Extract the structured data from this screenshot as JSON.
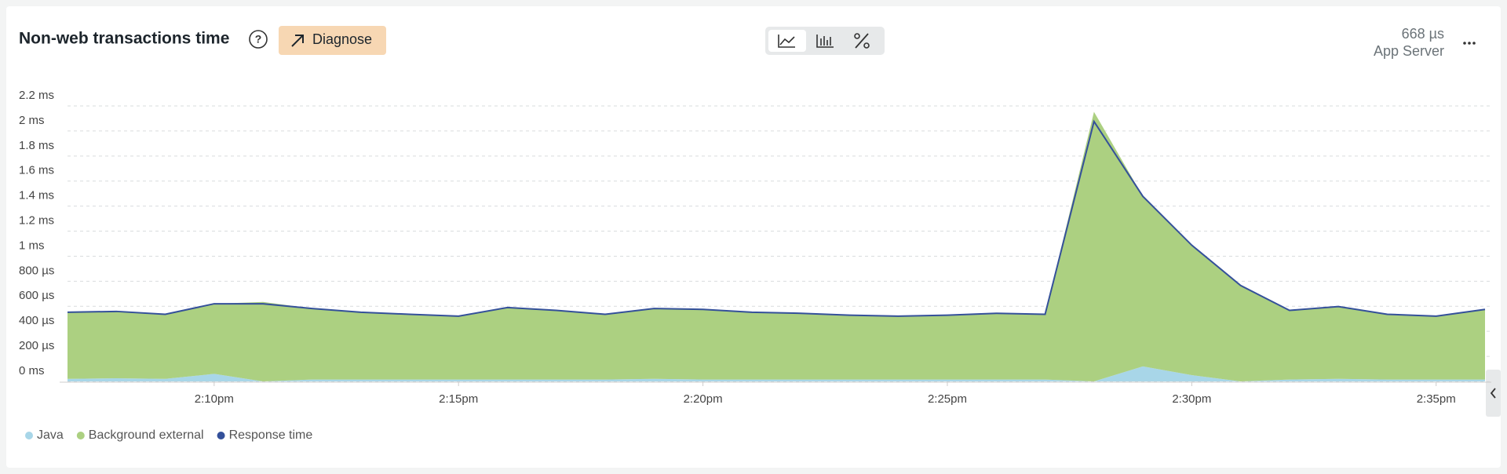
{
  "header": {
    "button": "Diagnose",
    "summary_value": "668 µs",
    "summary_label": "App Server"
  },
  "chart_data": {
    "type": "area",
    "title": "Non-web transactions time",
    "x": [
      7,
      8,
      9,
      10,
      11,
      12,
      13,
      14,
      15,
      16,
      17,
      18,
      19,
      20,
      21,
      22,
      23,
      24,
      25,
      26,
      27,
      28,
      29,
      30,
      31,
      32,
      33,
      34,
      35,
      36
    ],
    "xlim": [
      7,
      36
    ],
    "xticks": [
      {
        "value": 10,
        "label": "2:10pm"
      },
      {
        "value": 15,
        "label": "2:15pm"
      },
      {
        "value": 20,
        "label": "2:20pm"
      },
      {
        "value": 25,
        "label": "2:25pm"
      },
      {
        "value": 30,
        "label": "2:30pm"
      },
      {
        "value": 35,
        "label": "2:35pm"
      }
    ],
    "ylim": [
      0,
      2200
    ],
    "yticks": [
      {
        "value": 0,
        "label": "0 ms"
      },
      {
        "value": 200,
        "label": "200 µs"
      },
      {
        "value": 400,
        "label": "400 µs"
      },
      {
        "value": 600,
        "label": "600 µs"
      },
      {
        "value": 800,
        "label": "800 µs"
      },
      {
        "value": 1000,
        "label": "1 ms"
      },
      {
        "value": 1200,
        "label": "1.2 ms"
      },
      {
        "value": 1400,
        "label": "1.4 ms"
      },
      {
        "value": 1600,
        "label": "1.6 ms"
      },
      {
        "value": 1800,
        "label": "1.8 ms"
      },
      {
        "value": 2000,
        "label": "2 ms"
      },
      {
        "value": 2200,
        "label": "2.2 ms"
      }
    ],
    "grid": true,
    "series": [
      {
        "name": "Java",
        "color": "#a8d6e8",
        "stacked": true,
        "values": [
          20,
          25,
          20,
          60,
          0,
          15,
          15,
          15,
          15,
          15,
          15,
          15,
          20,
          15,
          15,
          15,
          15,
          15,
          15,
          15,
          15,
          0,
          120,
          50,
          0,
          15,
          20,
          15,
          15,
          15
        ]
      },
      {
        "name": "Background external",
        "color": "#acd081",
        "stacked": true,
        "values": [
          532,
          534,
          516,
          560,
          635,
          567,
          537,
          521,
          506,
          575,
          552,
          521,
          562,
          560,
          537,
          529,
          514,
          506,
          514,
          529,
          521,
          2153,
          1358,
          1038,
          766,
          552,
          578,
          521,
          506,
          560
        ]
      },
      {
        "name": "Response time",
        "color": "#34509a",
        "stacked": false,
        "values": [
          552,
          559,
          536,
          620,
          620,
          582,
          552,
          536,
          521,
          590,
          567,
          536,
          582,
          575,
          552,
          544,
          529,
          521,
          529,
          544,
          536,
          2076,
          1478,
          1088,
          766,
          567,
          598,
          536,
          521,
          575
        ]
      }
    ]
  }
}
